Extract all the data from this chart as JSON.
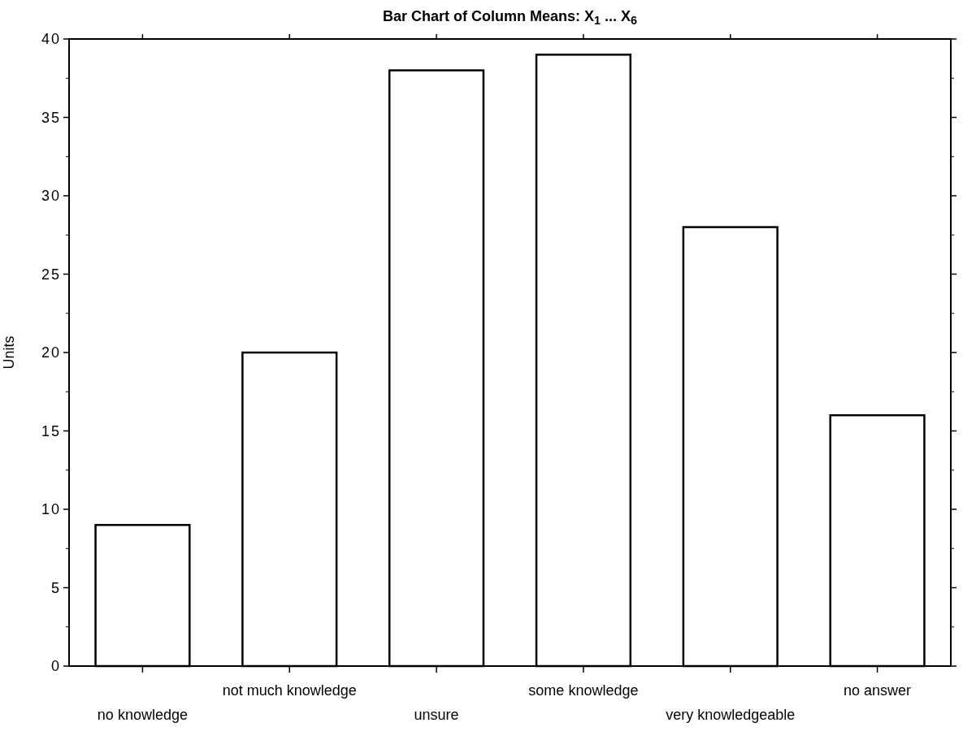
{
  "chart_data": {
    "type": "bar",
    "title": "Bar Chart of Column Means: X$_{1}$ ... X$_{6}$",
    "ylabel": "Units",
    "categories": [
      "no knowledge",
      "not much knowledge",
      "unsure",
      "some knowledge",
      "very knowledgeable",
      "no answer"
    ],
    "values": [
      9,
      20,
      38,
      39,
      28,
      16
    ],
    "color": "#ffffff",
    "ylim": [
      0,
      40
    ],
    "yticks": [
      0,
      5,
      10,
      15,
      20,
      25,
      30,
      35,
      40
    ],
    "grid": false
  }
}
